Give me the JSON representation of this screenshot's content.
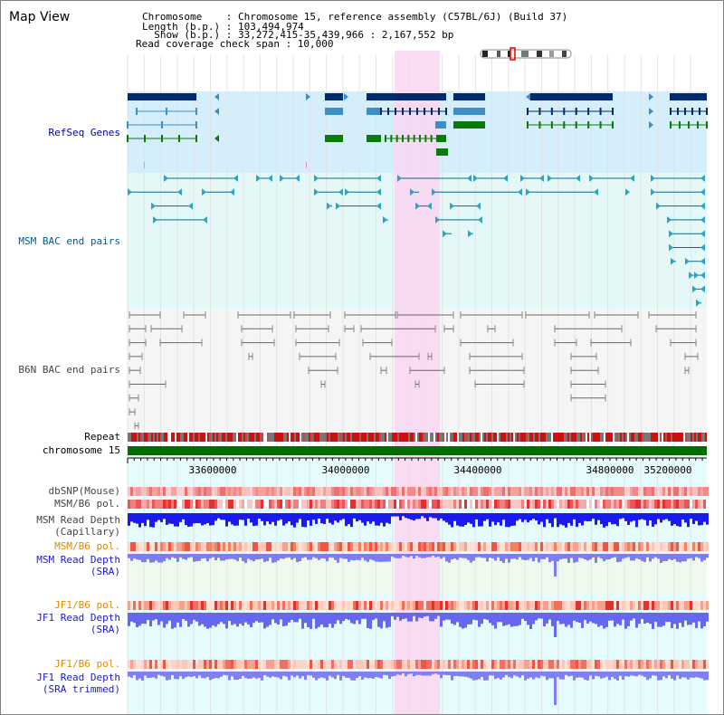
{
  "map_title": "Map View",
  "header": {
    "chromosome_line": "Chromosome    : Chromosome 15, reference assembly (C57BL/6J) (Build 37)",
    "length_line": "Length (b.p.) : 103,494,974",
    "show_line": "  Show (b.p.) : 33,272,415-35,439,966 : 2,167,552 bp",
    "coverage_line": "Read coverage check span : 10,000"
  },
  "tracks": {
    "refseq": "RefSeq Genes",
    "msm_bac": "MSM BAC end pairs",
    "b6n_bac": "B6N BAC end pairs",
    "repeat": "Repeat",
    "chromosome": "chromosome 15",
    "dbsnp": "dbSNP(Mouse)",
    "msm_b6_pol_1": "MSM/B6 pol.",
    "msm_read_depth_cap": "MSM Read Depth\n(Capillary)",
    "msm_b6_pol_2": "MSM/B6 pol.",
    "msm_read_depth_sra": "MSM Read Depth\n(SRA)",
    "jf1_b6_pol_1": "JF1/B6 pol.",
    "jf1_read_depth_sra": "JF1 Read Depth\n(SRA)",
    "jf1_b6_pol_2": "JF1/B6 pol.",
    "jf1_read_depth_trim": "JF1 Read Depth\n(SRA trimmed)"
  },
  "axis": {
    "ticks": [
      "33600000",
      "34000000",
      "34400000",
      "34800000",
      "35200000"
    ]
  },
  "colors": {
    "highlight": "#f9d6f2",
    "refseq_bg": "#d4eefb",
    "msm_bg": "#e4f8f8",
    "b6n_bg": "#f5f5f5",
    "gene_navy": "#002b6b",
    "gene_steel": "#3d8fc4",
    "gene_green": "#0a7a0a",
    "chromosome_bar": "#006e00"
  }
}
